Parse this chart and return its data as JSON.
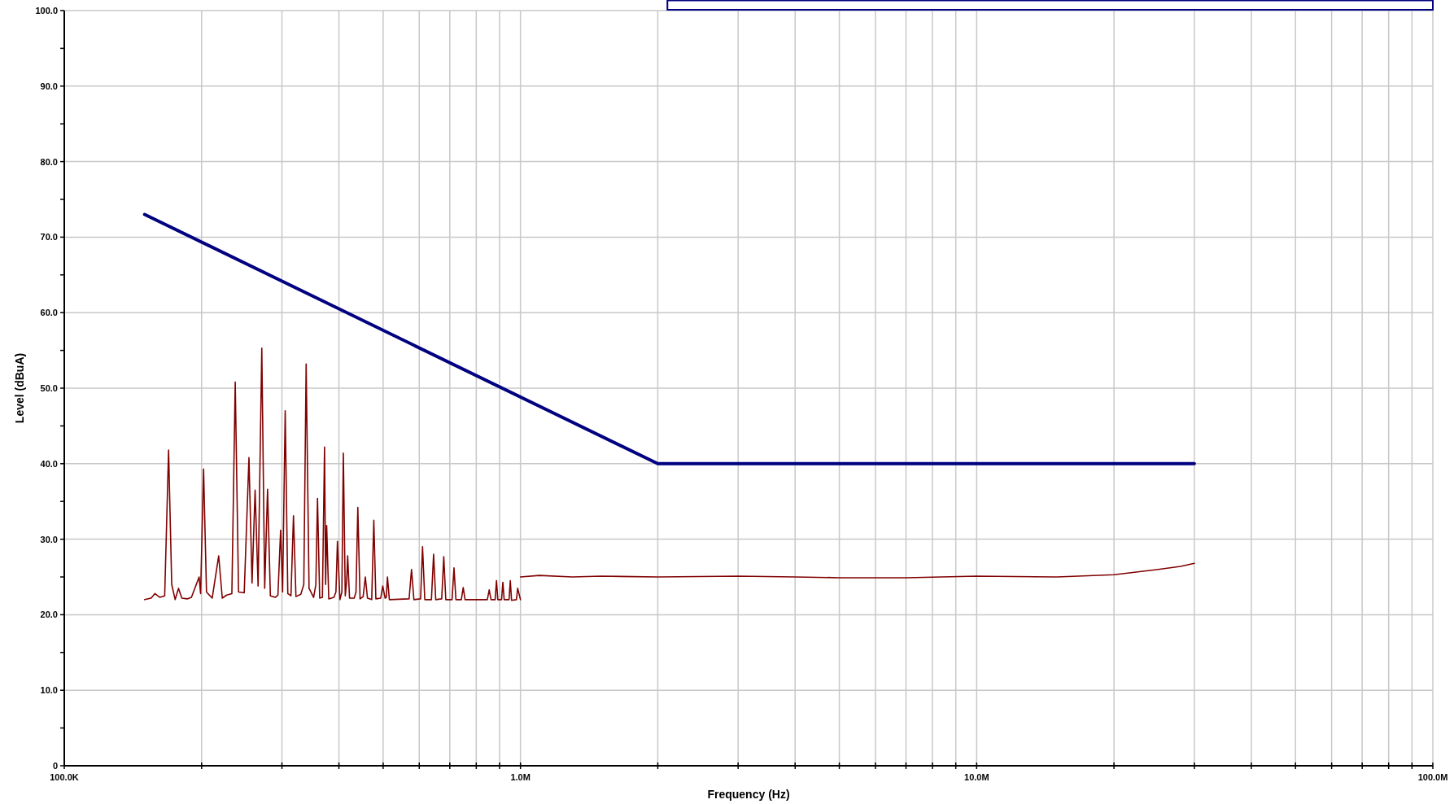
{
  "chart_data": {
    "type": "line",
    "xlabel": "Frequency (Hz)",
    "ylabel": "Level (dBuA)",
    "log": "x",
    "grid": true,
    "marker": "none",
    "line_style": "solid",
    "xlim": [
      100000,
      100000000
    ],
    "ylim": [
      0,
      100
    ],
    "xticks": [
      {
        "value": 100000,
        "label": "100.0K"
      },
      {
        "value": 200000,
        "label": null
      },
      {
        "value": 300000,
        "label": null
      },
      {
        "value": 400000,
        "label": null
      },
      {
        "value": 500000,
        "label": null
      },
      {
        "value": 600000,
        "label": null
      },
      {
        "value": 700000,
        "label": null
      },
      {
        "value": 800000,
        "label": null
      },
      {
        "value": 900000,
        "label": null
      },
      {
        "value": 1000000,
        "label": "1.0M"
      },
      {
        "value": 2000000,
        "label": null
      },
      {
        "value": 3000000,
        "label": null
      },
      {
        "value": 4000000,
        "label": null
      },
      {
        "value": 5000000,
        "label": null
      },
      {
        "value": 6000000,
        "label": null
      },
      {
        "value": 7000000,
        "label": null
      },
      {
        "value": 8000000,
        "label": null
      },
      {
        "value": 9000000,
        "label": null
      },
      {
        "value": 10000000,
        "label": "10.0M"
      },
      {
        "value": 20000000,
        "label": null
      },
      {
        "value": 30000000,
        "label": null
      },
      {
        "value": 40000000,
        "label": null
      },
      {
        "value": 50000000,
        "label": null
      },
      {
        "value": 60000000,
        "label": null
      },
      {
        "value": 70000000,
        "label": null
      },
      {
        "value": 80000000,
        "label": null
      },
      {
        "value": 90000000,
        "label": null
      },
      {
        "value": 100000000,
        "label": "100.0M"
      }
    ],
    "yticks": [
      0,
      {
        "value": 5,
        "label": null
      },
      {
        "value": 10,
        "label": "10.0"
      },
      {
        "value": 15,
        "label": null
      },
      {
        "value": 20,
        "label": "20.0"
      },
      {
        "value": 25,
        "label": null
      },
      {
        "value": 30,
        "label": "30.0"
      },
      {
        "value": 35,
        "label": null
      },
      {
        "value": 40,
        "label": "40.0"
      },
      {
        "value": 45,
        "label": null
      },
      {
        "value": 50,
        "label": "50.0"
      },
      {
        "value": 55,
        "label": null
      },
      {
        "value": 60,
        "label": "60.0"
      },
      {
        "value": 65,
        "label": null
      },
      {
        "value": 70,
        "label": "70.0"
      },
      {
        "value": 75,
        "label": null
      },
      {
        "value": 80,
        "label": "80.0"
      },
      {
        "value": 85,
        "label": null
      },
      {
        "value": 90,
        "label": "90.0"
      },
      {
        "value": 95,
        "label": null
      },
      {
        "value": 100,
        "label": "100.0"
      }
    ],
    "series": [
      {
        "color": "#800000",
        "x": [
          150000,
          155000,
          158000,
          162000,
          166000,
          169300,
          172000,
          175000,
          178000,
          181000,
          186000,
          190000,
          197500,
          199000,
          202000,
          205000,
          211000,
          218000,
          222000,
          227000,
          233000,
          237000,
          241000,
          248000,
          254000,
          258000,
          262000,
          266000,
          271000,
          275000,
          279000,
          283000,
          290000,
          294000,
          298000,
          301000,
          305000,
          309000,
          314000,
          318000,
          322000,
          330000,
          335000,
          339000,
          344000,
          352000,
          356000,
          359000,
          363000,
          368000,
          372000,
          374000,
          376000,
          380000,
          390000,
          394000,
          397000,
          402000,
          406000,
          409000,
          413000,
          416000,
          418000,
          422000,
          432000,
          436000,
          440000,
          445000,
          452000,
          457000,
          462000,
          472000,
          477000,
          482000,
          494000,
          499000,
          505000,
          508000,
          511000,
          516000,
          570000,
          577000,
          584000,
          604000,
          610000,
          617000,
          638000,
          645000,
          652000,
          672000,
          679000,
          686000,
          708000,
          715000,
          722000,
          742000,
          749000,
          756000,
          846000,
          854000,
          862000,
          880000,
          886000,
          892000,
          909000,
          915000,
          921000,
          944000,
          950000,
          956000,
          980000,
          986000,
          1000000
        ],
        "values": [
          22.0,
          22.2,
          22.8,
          22.3,
          22.5,
          41.8,
          24.0,
          22.0,
          23.5,
          22.2,
          22.1,
          22.3,
          25.0,
          22.8,
          39.3,
          23.0,
          22.2,
          27.8,
          22.2,
          22.6,
          22.8,
          50.8,
          23.0,
          22.9,
          40.8,
          24.2,
          36.5,
          23.8,
          55.3,
          23.5,
          36.6,
          22.5,
          22.3,
          22.6,
          31.2,
          23.0,
          47.0,
          22.8,
          22.5,
          33.1,
          22.4,
          22.7,
          24.0,
          53.2,
          23.5,
          22.3,
          24.0,
          35.4,
          22.2,
          22.3,
          42.2,
          24.0,
          31.8,
          22.1,
          22.3,
          23.0,
          29.7,
          22.0,
          23.0,
          41.4,
          22.5,
          24.5,
          27.8,
          22.2,
          22.2,
          23.0,
          34.2,
          22.1,
          22.4,
          25.0,
          22.2,
          22.0,
          32.5,
          22.1,
          22.2,
          23.8,
          22.2,
          22.3,
          25.0,
          22.0,
          22.1,
          26.0,
          22.0,
          22.1,
          29.0,
          22.0,
          22.0,
          28.0,
          22.0,
          22.1,
          27.7,
          22.0,
          22.0,
          26.2,
          22.0,
          22.0,
          23.6,
          22.0,
          22.0,
          23.3,
          22.0,
          22.0,
          24.5,
          22.0,
          22.0,
          24.3,
          22.0,
          22.0,
          24.5,
          21.9,
          22.0,
          23.5,
          22.0
        ]
      },
      {
        "color": "#800000",
        "x": [
          1000000,
          1100000,
          1300000,
          1500000,
          2000000,
          3000000,
          4000000,
          5000000,
          7000000,
          10000000,
          15000000,
          20000000,
          25000000,
          28000000,
          30000000
        ],
        "values": [
          25.0,
          25.2,
          25.0,
          25.1,
          25.0,
          25.1,
          25.0,
          24.9,
          24.9,
          25.1,
          25.0,
          25.3,
          26.0,
          26.4,
          26.8
        ]
      },
      {
        "color": "#000080",
        "x": [
          150000,
          2000000,
          30000000
        ],
        "values": [
          73,
          40,
          40
        ]
      }
    ]
  }
}
